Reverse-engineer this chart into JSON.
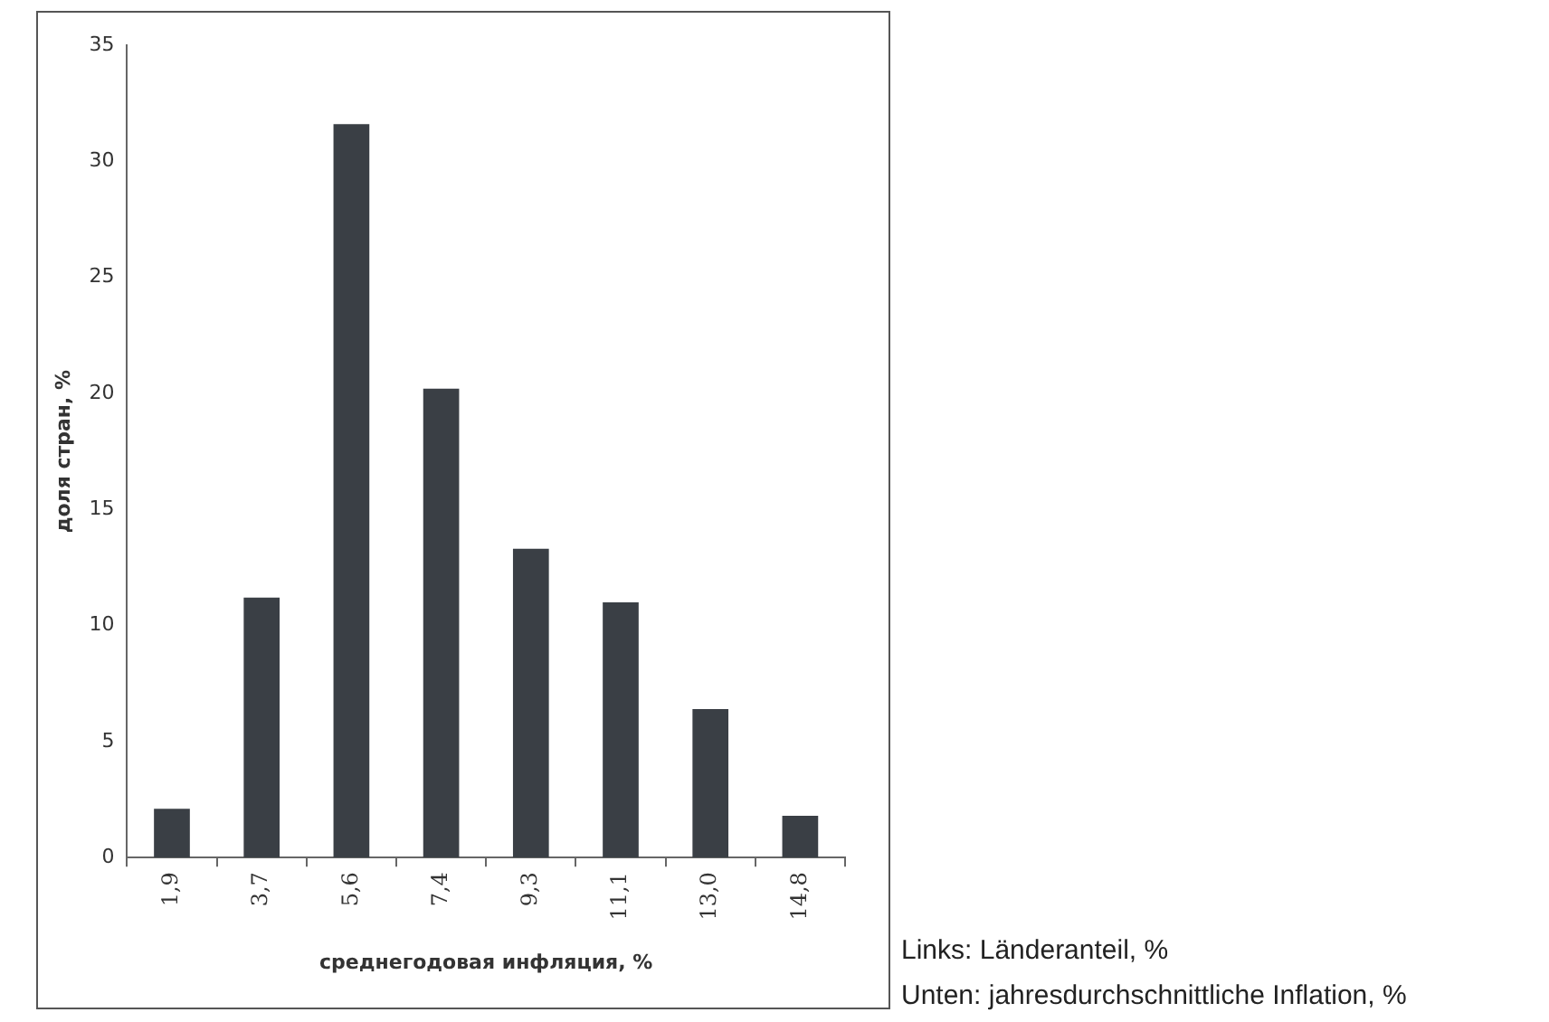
{
  "chart_data": {
    "type": "bar",
    "xlabel": "среднегодовая инфляция, %",
    "ylabel": "доля стран, %",
    "categories": [
      "1,9",
      "3,7",
      "5,6",
      "7,4",
      "9,3",
      "11,1",
      "13,0",
      "14,8"
    ],
    "values": [
      2.1,
      11.2,
      31.6,
      20.2,
      13.3,
      11.0,
      6.4,
      1.8
    ],
    "color": "#3a3f45",
    "ylim": [
      0,
      35
    ],
    "yticks": [
      0,
      5,
      10,
      15,
      20,
      25,
      30,
      35
    ],
    "grid": false,
    "legend": false,
    "annotations": [
      "Links: Länderanteil, %",
      "Unten: jahresdurchschnittliche Inflation, %"
    ]
  }
}
